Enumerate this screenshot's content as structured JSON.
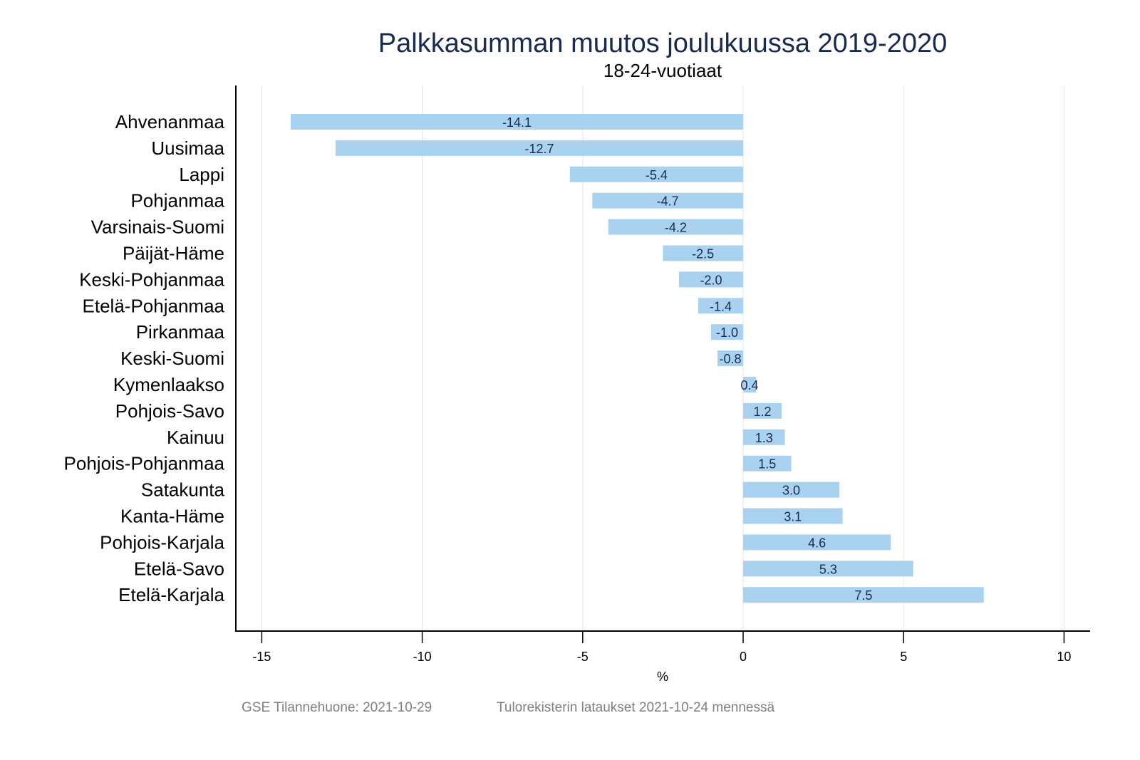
{
  "chart_data": {
    "type": "bar",
    "orientation": "horizontal",
    "title": "Palkkasumman muutos joulukuussa 2019-2020",
    "subtitle": "18-24-vuotiaat",
    "xlabel": "%",
    "ylabel": "",
    "xlim": [
      -16,
      11
    ],
    "xticks": [
      -15,
      -10,
      -5,
      0,
      5,
      10
    ],
    "xtick_labels": [
      "-15",
      "-10",
      "-5",
      "0",
      "5",
      "10"
    ],
    "grid": true,
    "categories": [
      "Ahvenanmaa",
      "Uusimaa",
      "Lappi",
      "Pohjanmaa",
      "Varsinais-Suomi",
      "Päijät-Häme",
      "Keski-Pohjanmaa",
      "Etelä-Pohjanmaa",
      "Pirkanmaa",
      "Keski-Suomi",
      "Kymenlaakso",
      "Pohjois-Savo",
      "Kainuu",
      "Pohjois-Pohjanmaa",
      "Satakunta",
      "Kanta-Häme",
      "Pohjois-Karjala",
      "Etelä-Savo",
      "Etelä-Karjala"
    ],
    "values": [
      -14.1,
      -12.7,
      -5.4,
      -4.7,
      -4.2,
      -2.5,
      -2.0,
      -1.4,
      -1.0,
      -0.8,
      0.4,
      1.2,
      1.3,
      1.5,
      3.0,
      3.1,
      4.6,
      5.3,
      7.5
    ],
    "value_labels": [
      "-14.1",
      "-12.7",
      "-5.4",
      "-4.7",
      "-4.2",
      "-2.5",
      "-2.0",
      "-1.4",
      "-1.0",
      "-0.8",
      "0.4",
      "1.2",
      "1.3",
      "1.5",
      "3.0",
      "3.1",
      "4.6",
      "5.3",
      "7.5"
    ],
    "bar_color": "#a9d2f0",
    "label_color": "#1a2a4f"
  },
  "footer": {
    "source": "GSE Tilannehuone: 2021-10-29",
    "note": "Tulorekisterin lataukset 2021-10-24 mennessä"
  }
}
